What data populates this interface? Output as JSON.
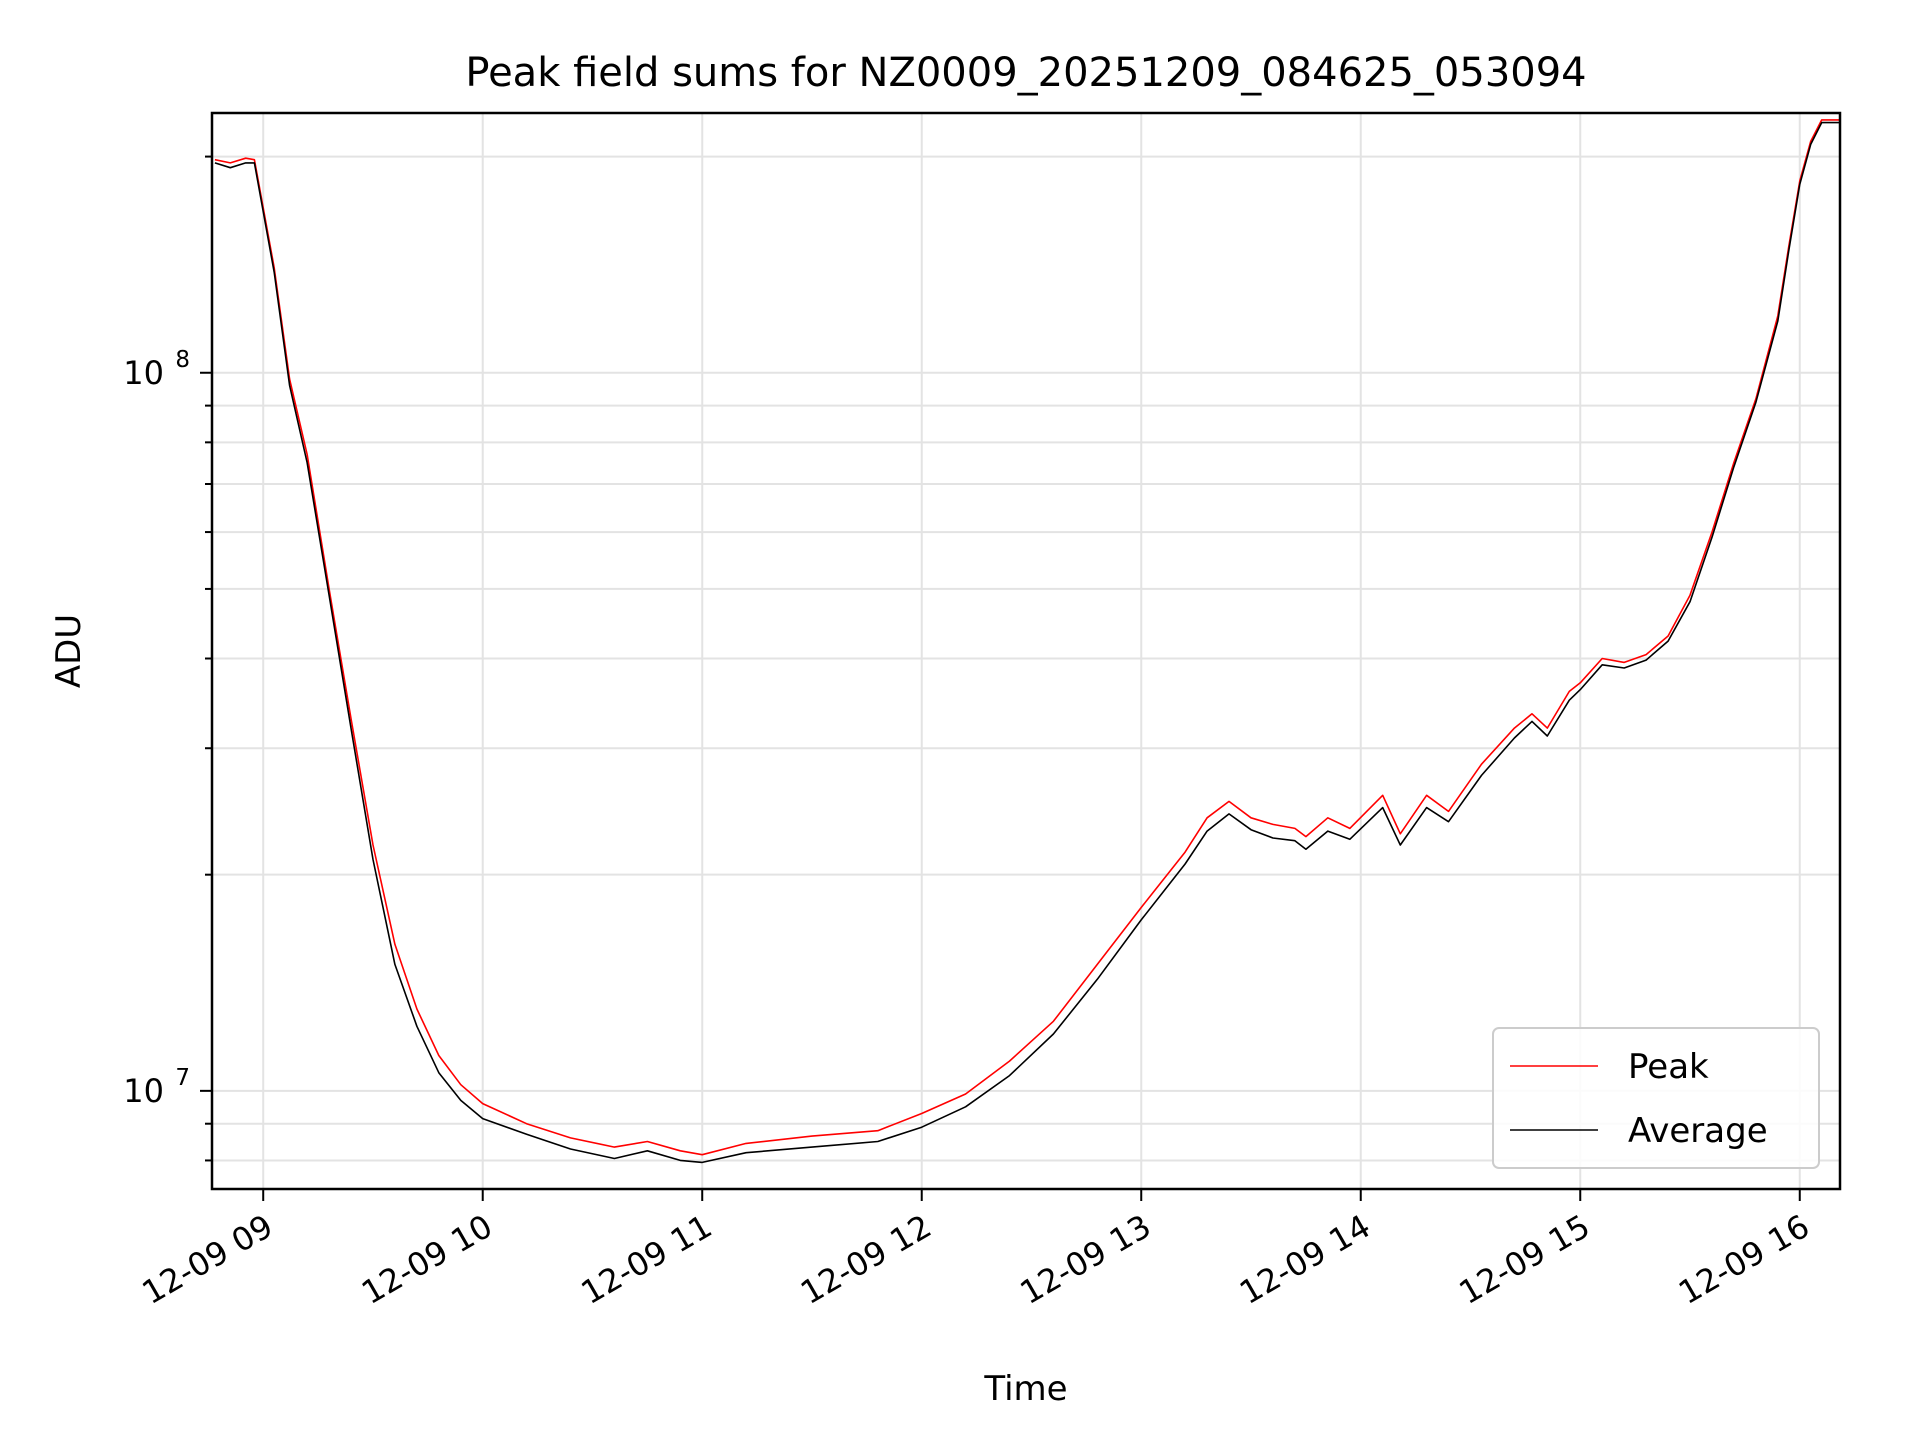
{
  "chart_data": {
    "type": "line",
    "title": "Peak field sums for NZ0009_20251209_084625_053094",
    "xlabel": "Time",
    "ylabel": "ADU",
    "y_scale": "log",
    "ylim": [
      7300000,
      230000000
    ],
    "xlim": [
      "12-09 08:46",
      "12-09 16:11"
    ],
    "x_ticks": [
      "12-09 09",
      "12-09 10",
      "12-09 11",
      "12-09 12",
      "12-09 13",
      "12-09 14",
      "12-09 15",
      "12-09 16"
    ],
    "y_ticks": [
      {
        "label": "10",
        "exp": "7",
        "value": 10000000
      },
      {
        "label": "10",
        "exp": "8",
        "value": 100000000
      }
    ],
    "grid": true,
    "legend_position": "lower-right",
    "x_unit": "hours since 12-09 00:00",
    "series": [
      {
        "name": "Peak",
        "color": "#ff0000",
        "points": [
          [
            8.78,
            198000000
          ],
          [
            8.85,
            196000000
          ],
          [
            8.92,
            199000000
          ],
          [
            8.96,
            198000000
          ],
          [
            9.05,
            140000000
          ],
          [
            9.12,
            98000000
          ],
          [
            9.2,
            77000000
          ],
          [
            9.3,
            50000000
          ],
          [
            9.4,
            33000000
          ],
          [
            9.5,
            22000000
          ],
          [
            9.6,
            16000000
          ],
          [
            9.7,
            13000000
          ],
          [
            9.8,
            11200000
          ],
          [
            9.9,
            10200000
          ],
          [
            10.0,
            9600000
          ],
          [
            10.2,
            9000000
          ],
          [
            10.4,
            8600000
          ],
          [
            10.6,
            8350000
          ],
          [
            10.75,
            8500000
          ],
          [
            10.9,
            8250000
          ],
          [
            11.0,
            8150000
          ],
          [
            11.2,
            8450000
          ],
          [
            11.5,
            8650000
          ],
          [
            11.8,
            8800000
          ],
          [
            12.0,
            9300000
          ],
          [
            12.2,
            9900000
          ],
          [
            12.4,
            11000000
          ],
          [
            12.6,
            12500000
          ],
          [
            12.8,
            15000000
          ],
          [
            13.0,
            18000000
          ],
          [
            13.2,
            21500000
          ],
          [
            13.3,
            24000000
          ],
          [
            13.4,
            25300000
          ],
          [
            13.5,
            24000000
          ],
          [
            13.6,
            23500000
          ],
          [
            13.7,
            23200000
          ],
          [
            13.75,
            22600000
          ],
          [
            13.85,
            24000000
          ],
          [
            13.95,
            23200000
          ],
          [
            14.1,
            25800000
          ],
          [
            14.18,
            22800000
          ],
          [
            14.3,
            25800000
          ],
          [
            14.4,
            24500000
          ],
          [
            14.55,
            28500000
          ],
          [
            14.7,
            32000000
          ],
          [
            14.78,
            33500000
          ],
          [
            14.85,
            32000000
          ],
          [
            14.95,
            36000000
          ],
          [
            15.0,
            37000000
          ],
          [
            15.1,
            40000000
          ],
          [
            15.2,
            39500000
          ],
          [
            15.3,
            40500000
          ],
          [
            15.4,
            43000000
          ],
          [
            15.5,
            49000000
          ],
          [
            15.6,
            60000000
          ],
          [
            15.7,
            75000000
          ],
          [
            15.8,
            92000000
          ],
          [
            15.9,
            120000000
          ],
          [
            15.95,
            150000000
          ],
          [
            16.0,
            185000000
          ],
          [
            16.05,
            210000000
          ],
          [
            16.1,
            225000000
          ],
          [
            16.18,
            225000000
          ]
        ]
      },
      {
        "name": "Average",
        "color": "#000000",
        "points": [
          [
            8.78,
            196000000
          ],
          [
            8.85,
            193000000
          ],
          [
            8.92,
            196000000
          ],
          [
            8.96,
            196000000
          ],
          [
            9.05,
            138000000
          ],
          [
            9.12,
            96000000
          ],
          [
            9.2,
            75000000
          ],
          [
            9.3,
            49000000
          ],
          [
            9.4,
            32000000
          ],
          [
            9.5,
            21000000
          ],
          [
            9.6,
            15000000
          ],
          [
            9.7,
            12300000
          ],
          [
            9.8,
            10600000
          ],
          [
            9.9,
            9700000
          ],
          [
            10.0,
            9150000
          ],
          [
            10.2,
            8700000
          ],
          [
            10.4,
            8300000
          ],
          [
            10.6,
            8050000
          ],
          [
            10.75,
            8250000
          ],
          [
            10.9,
            8000000
          ],
          [
            11.0,
            7950000
          ],
          [
            11.2,
            8200000
          ],
          [
            11.5,
            8350000
          ],
          [
            11.8,
            8500000
          ],
          [
            12.0,
            8900000
          ],
          [
            12.2,
            9500000
          ],
          [
            12.4,
            10500000
          ],
          [
            12.6,
            12000000
          ],
          [
            12.8,
            14300000
          ],
          [
            13.0,
            17300000
          ],
          [
            13.2,
            20700000
          ],
          [
            13.3,
            23000000
          ],
          [
            13.4,
            24300000
          ],
          [
            13.5,
            23100000
          ],
          [
            13.6,
            22500000
          ],
          [
            13.7,
            22300000
          ],
          [
            13.75,
            21700000
          ],
          [
            13.85,
            23000000
          ],
          [
            13.95,
            22400000
          ],
          [
            14.1,
            24800000
          ],
          [
            14.18,
            22000000
          ],
          [
            14.3,
            24800000
          ],
          [
            14.4,
            23700000
          ],
          [
            14.55,
            27500000
          ],
          [
            14.7,
            31000000
          ],
          [
            14.78,
            32700000
          ],
          [
            14.85,
            31200000
          ],
          [
            14.95,
            35000000
          ],
          [
            15.0,
            36200000
          ],
          [
            15.1,
            39200000
          ],
          [
            15.2,
            38800000
          ],
          [
            15.3,
            39800000
          ],
          [
            15.4,
            42300000
          ],
          [
            15.5,
            48000000
          ],
          [
            15.6,
            59000000
          ],
          [
            15.7,
            74000000
          ],
          [
            15.8,
            91000000
          ],
          [
            15.9,
            118000000
          ],
          [
            15.95,
            148000000
          ],
          [
            16.0,
            183000000
          ],
          [
            16.05,
            208000000
          ],
          [
            16.1,
            223000000
          ],
          [
            16.18,
            223000000
          ]
        ]
      }
    ]
  }
}
